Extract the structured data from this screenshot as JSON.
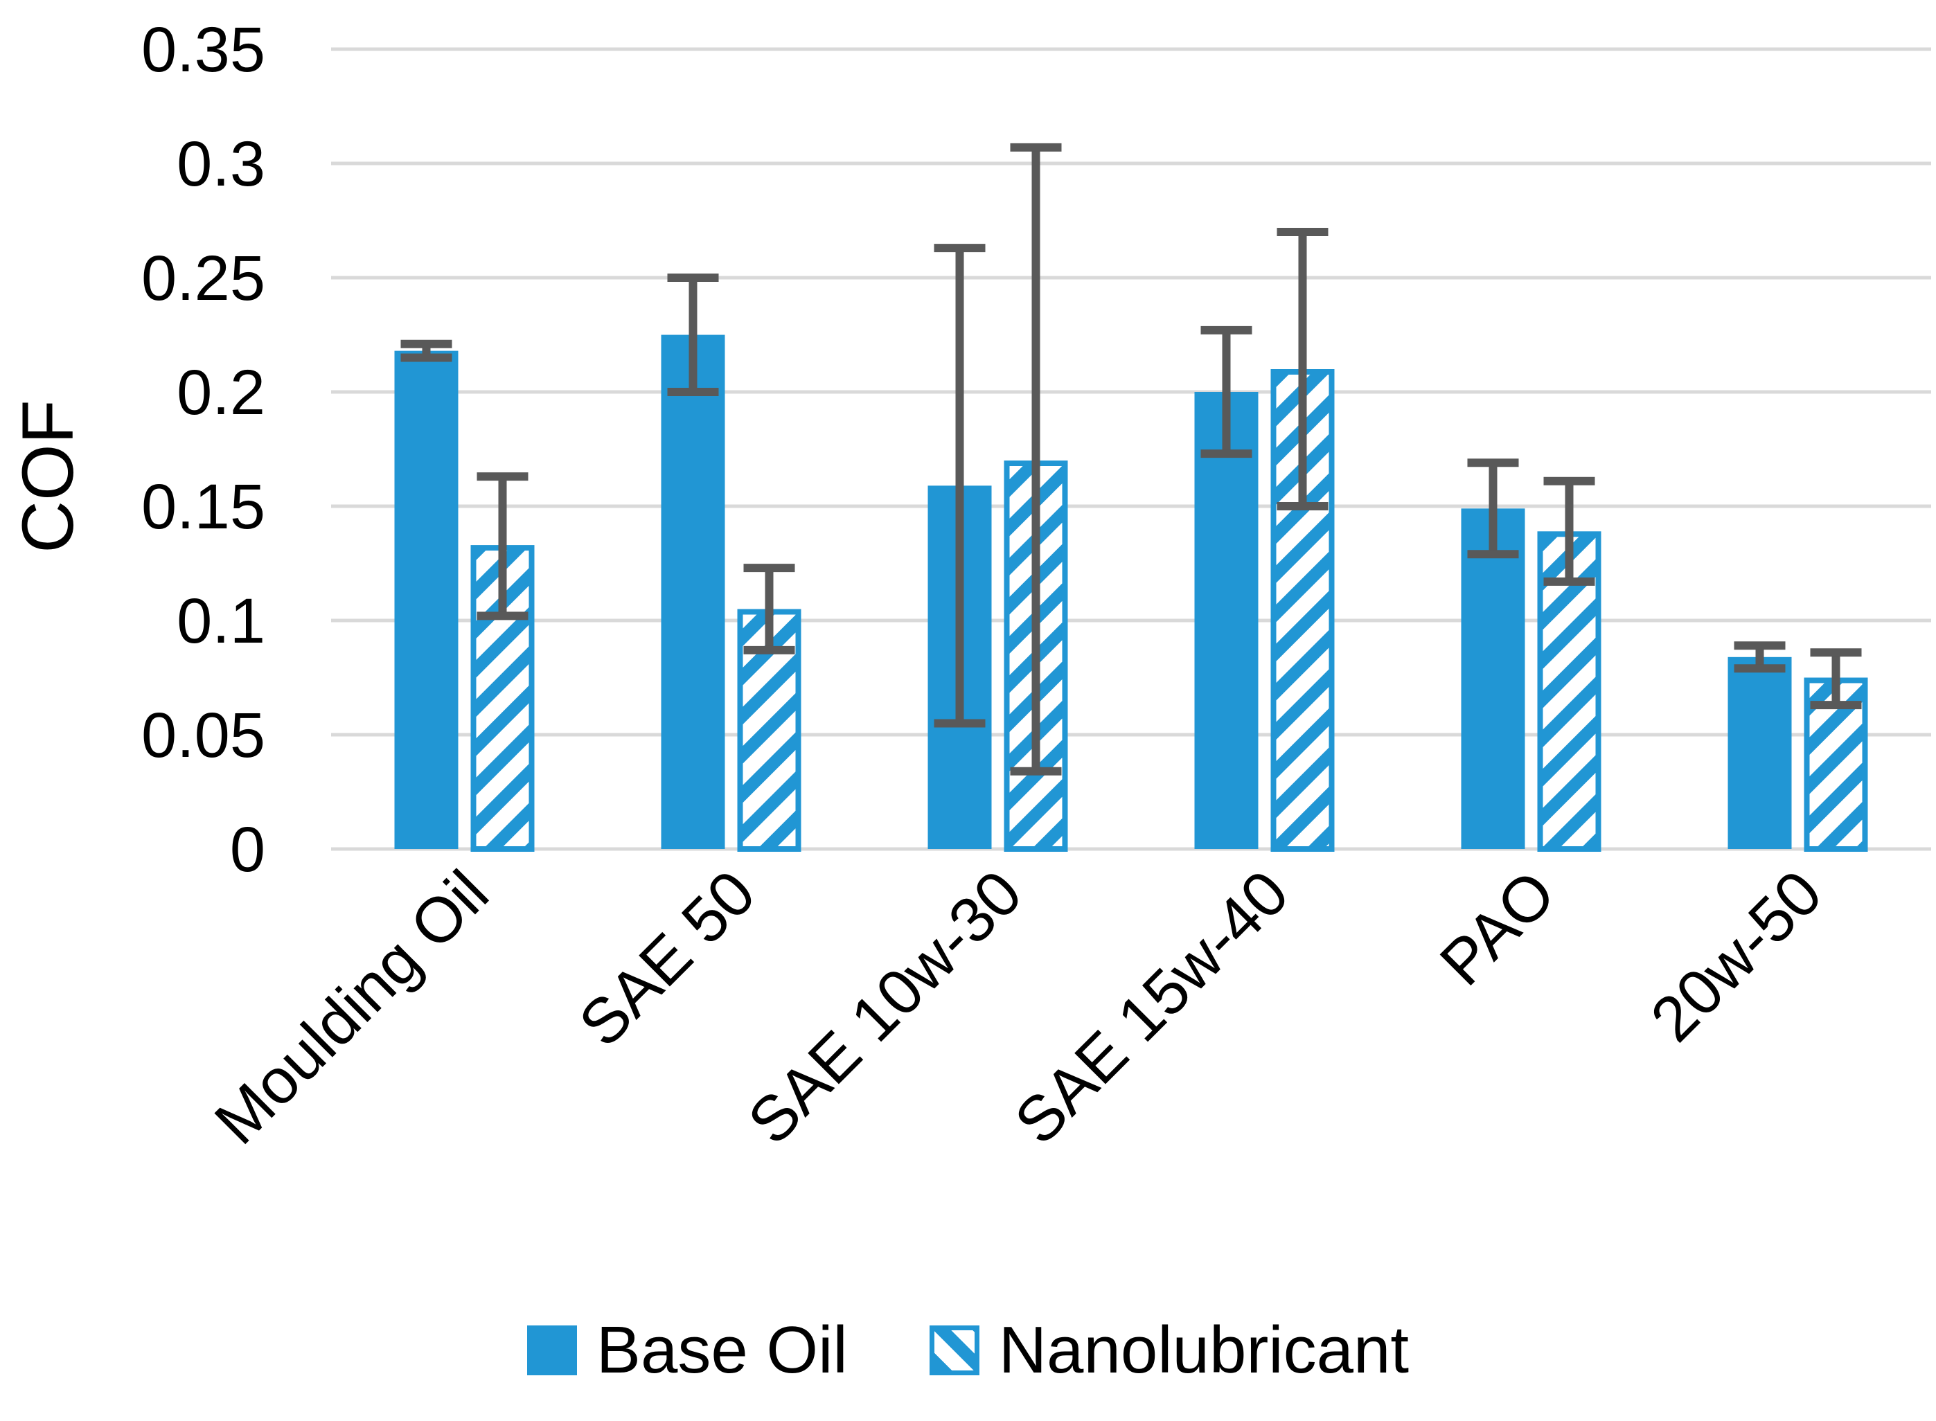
{
  "chart_data": {
    "type": "bar",
    "title": "",
    "xlabel": "",
    "ylabel": "COF",
    "ylim": [
      0,
      0.35
    ],
    "ytick_step": 0.05,
    "yticks": [
      "0",
      "0.05",
      "0.1",
      "0.15",
      "0.2",
      "0.25",
      "0.3",
      "0.35"
    ],
    "grid": "horizontal",
    "legend_position": "bottom",
    "categories": [
      "Moulding Oil",
      "SAE 50",
      "SAE 10w-30",
      "SAE 15w-40",
      "PAO",
      "20w-50"
    ],
    "series": [
      {
        "name": "Base Oil",
        "style": "solid",
        "values": [
          0.218,
          0.225,
          0.159,
          0.2,
          0.149,
          0.084
        ],
        "error_low": [
          0.215,
          0.2,
          0.055,
          0.173,
          0.129,
          0.079
        ],
        "error_high": [
          0.221,
          0.25,
          0.263,
          0.227,
          0.169,
          0.089
        ]
      },
      {
        "name": "Nanolubricant",
        "style": "hatched",
        "values": [
          0.133,
          0.105,
          0.17,
          0.21,
          0.139,
          0.075
        ],
        "error_low": [
          0.102,
          0.087,
          0.034,
          0.15,
          0.117,
          0.063
        ],
        "error_high": [
          0.163,
          0.123,
          0.307,
          0.27,
          0.161,
          0.086
        ]
      }
    ],
    "colors": {
      "bar_blue": "#2196d4",
      "error_gray": "#595959",
      "gridline": "#d9d9d9",
      "text": "#000000"
    }
  }
}
